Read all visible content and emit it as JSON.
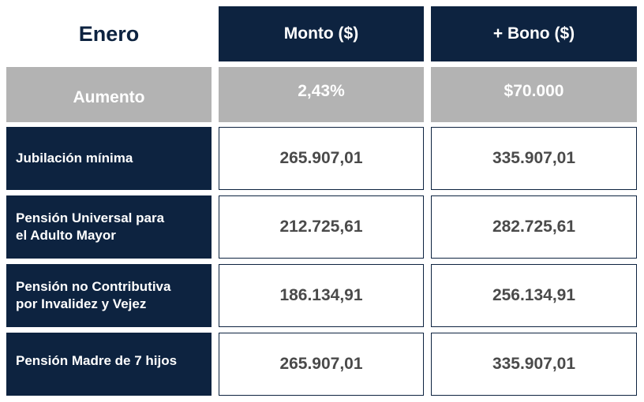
{
  "header": {
    "month": "Enero",
    "col_amount": "Monto ($)",
    "col_bonus": "+ Bono ($)"
  },
  "increase": {
    "label": "Aumento",
    "percent": "2,43%",
    "bonus": "$70.000"
  },
  "rows": [
    {
      "label_line1": "Jubilación mínima",
      "label_line2": "",
      "amount": "265.907,01",
      "with_bonus": "335.907,01"
    },
    {
      "label_line1": "Pensión Universal para",
      "label_line2": "el Adulto Mayor",
      "amount": "212.725,61",
      "with_bonus": "282.725,61"
    },
    {
      "label_line1": "Pensión no Contributiva",
      "label_line2": "por Invalidez y Vejez",
      "amount": "186.134,91",
      "with_bonus": "256.134,91"
    },
    {
      "label_line1": "Pensión Madre de 7 hijos",
      "label_line2": "",
      "amount": "265.907,01",
      "with_bonus": "335.907,01"
    }
  ],
  "colors": {
    "navy": "#0d2340",
    "gray": "#b3b3b3",
    "value_text": "#4a4a4a"
  }
}
